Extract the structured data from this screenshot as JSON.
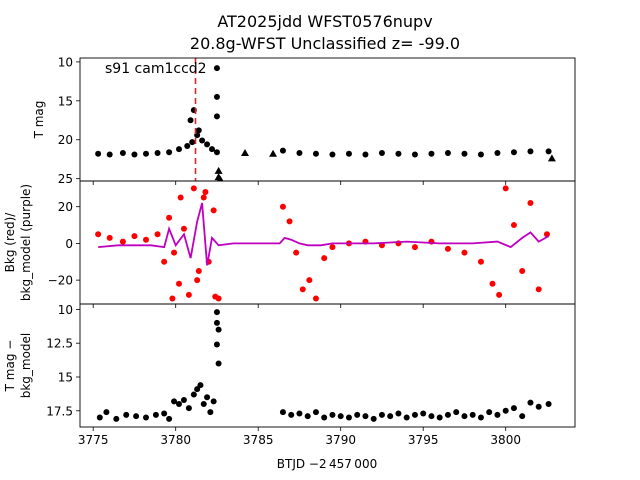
{
  "figure": {
    "title_line1": "AT2025jdd  WFST0576nupv",
    "title_line2": "20.8g-WFST Unclassified z= -99.0",
    "xlabel": "BTJD −2 457 000"
  },
  "chart_data": [
    {
      "type": "scatter",
      "panel": "top",
      "ylabel": "T mag",
      "annotation": "s91 cam1ccd2",
      "xlim": [
        3774.2,
        3804.2
      ],
      "ylim": [
        25.3,
        9.5
      ],
      "y_inverted": true,
      "x_ticks": [
        3775,
        3780,
        3785,
        3790,
        3795,
        3800
      ],
      "y_ticks": [
        10,
        15,
        20,
        25
      ],
      "vline": {
        "x": 3781.2,
        "color": "#d62728",
        "style": "dashed"
      },
      "series": [
        {
          "marker": "circle",
          "color": "#000000",
          "x": [
            3775.3,
            3776.0,
            3776.8,
            3777.5,
            3778.2,
            3778.9,
            3779.6,
            3780.2,
            3780.7,
            3781.0,
            3781.3,
            3781.6,
            3781.9,
            3782.2,
            3782.5,
            3786.5,
            3787.5,
            3788.5,
            3789.5,
            3790.5,
            3791.5,
            3792.5,
            3793.5,
            3794.5,
            3795.5,
            3796.5,
            3797.5,
            3798.5,
            3799.5,
            3800.5,
            3801.5,
            3802.6,
            3780.9,
            3781.1,
            3781.4,
            3782.5,
            3782.5,
            3782.5
          ],
          "y": [
            21.8,
            21.9,
            21.7,
            21.9,
            21.8,
            21.7,
            21.6,
            21.2,
            20.8,
            20.3,
            19.4,
            20.1,
            20.6,
            21.2,
            21.6,
            21.4,
            21.7,
            21.8,
            21.9,
            21.8,
            21.9,
            21.7,
            21.8,
            21.9,
            21.8,
            21.7,
            21.8,
            21.9,
            21.7,
            21.6,
            21.5,
            21.5,
            17.5,
            16.2,
            18.8,
            10.8,
            14.5,
            17.0
          ]
        },
        {
          "marker": "triangle",
          "color": "#000000",
          "x": [
            3782.6,
            3782.6,
            3782.7,
            3784.2,
            3785.9,
            3802.8
          ],
          "y": [
            24.0,
            24.8,
            25.1,
            21.7,
            21.8,
            22.4
          ]
        }
      ]
    },
    {
      "type": "scatter",
      "panel": "middle",
      "ylabel_line1": "Bkg (red)/",
      "ylabel_line2": "bkg_model (purple)",
      "xlim": [
        3774.2,
        3804.2
      ],
      "ylim": [
        -33,
        34
      ],
      "x_ticks": [
        3775,
        3780,
        3785,
        3790,
        3795,
        3800
      ],
      "y_ticks": [
        -20,
        0,
        20
      ],
      "series": [
        {
          "name": "Bkg",
          "marker": "circle",
          "color": "#ff0000",
          "x": [
            3775.3,
            3776.0,
            3776.8,
            3777.5,
            3778.2,
            3778.9,
            3779.3,
            3779.6,
            3779.9,
            3780.2,
            3780.5,
            3780.8,
            3781.1,
            3781.4,
            3781.7,
            3782.0,
            3782.3,
            3782.6,
            3786.5,
            3786.9,
            3787.3,
            3787.7,
            3788.1,
            3788.5,
            3789.0,
            3789.5,
            3790.5,
            3791.5,
            3792.5,
            3793.5,
            3794.5,
            3795.5,
            3796.5,
            3797.5,
            3798.5,
            3799.2,
            3799.6,
            3800.0,
            3800.5,
            3801.0,
            3801.5,
            3802.0,
            3802.5,
            3779.8,
            3780.3,
            3781.3,
            3781.8,
            3782.4
          ],
          "y": [
            5,
            3,
            1,
            4,
            2,
            5,
            -10,
            14,
            -5,
            -22,
            8,
            -28,
            30,
            -15,
            25,
            -10,
            18,
            -30,
            20,
            12,
            -5,
            -25,
            -20,
            -30,
            -8,
            -2,
            0,
            1,
            -1,
            0,
            -2,
            1,
            -3,
            -5,
            -10,
            -22,
            -28,
            30,
            10,
            -15,
            22,
            -25,
            5,
            -30,
            25,
            -20,
            28,
            -29
          ]
        },
        {
          "name": "bkg_model",
          "marker": "line",
          "color": "#bf00bf",
          "x": [
            3775.3,
            3776.5,
            3777.5,
            3778.5,
            3779.3,
            3779.6,
            3780.0,
            3780.5,
            3780.9,
            3781.3,
            3781.6,
            3781.9,
            3782.2,
            3782.6,
            3783.5,
            3785.0,
            3786.3,
            3786.6,
            3787.0,
            3787.5,
            3788.0,
            3788.8,
            3789.5,
            3790.5,
            3792.0,
            3794.0,
            3796.0,
            3798.0,
            3799.5,
            3800.3,
            3801.0,
            3801.5,
            3802.0,
            3802.6
          ],
          "y": [
            -2,
            -1,
            -1,
            -1,
            -2,
            8,
            -1,
            5,
            -8,
            12,
            22,
            -12,
            3,
            -1,
            0,
            0,
            0,
            3,
            2,
            0,
            -1,
            -1,
            0,
            0,
            0,
            1,
            0,
            0,
            1,
            -2,
            3,
            6,
            1,
            4
          ]
        }
      ]
    },
    {
      "type": "scatter",
      "panel": "bottom",
      "ylabel_line1": "T mag −",
      "ylabel_line2": "bkg_model",
      "xlim": [
        3774.2,
        3804.2
      ],
      "ylim": [
        18.7,
        9.6
      ],
      "y_inverted": true,
      "x_ticks": [
        3775,
        3780,
        3785,
        3790,
        3795,
        3800
      ],
      "y_ticks": [
        10.0,
        12.5,
        15.0,
        17.5
      ],
      "series": [
        {
          "marker": "circle",
          "color": "#000000",
          "x": [
            3775.4,
            3775.8,
            3776.4,
            3777.0,
            3777.6,
            3778.2,
            3778.8,
            3779.3,
            3779.6,
            3779.9,
            3780.2,
            3780.5,
            3780.8,
            3781.1,
            3781.3,
            3781.5,
            3781.7,
            3781.9,
            3782.1,
            3782.3,
            3782.5,
            3782.5,
            3782.6,
            3782.5,
            3782.6,
            3786.5,
            3787.0,
            3787.5,
            3788.0,
            3788.5,
            3789.0,
            3789.5,
            3790.0,
            3790.5,
            3791.0,
            3791.5,
            3792.0,
            3792.5,
            3793.0,
            3793.5,
            3794.0,
            3794.5,
            3795.0,
            3795.5,
            3796.0,
            3796.5,
            3797.0,
            3797.5,
            3798.0,
            3798.5,
            3799.0,
            3799.5,
            3800.0,
            3800.5,
            3801.0,
            3801.5,
            3802.0,
            3802.6
          ],
          "y": [
            18.0,
            17.6,
            18.1,
            17.8,
            17.9,
            18.0,
            17.8,
            17.7,
            18.1,
            16.8,
            17.0,
            16.7,
            17.3,
            16.3,
            15.9,
            15.6,
            17.0,
            16.5,
            17.6,
            16.8,
            10.2,
            11.0,
            11.5,
            12.6,
            14.0,
            17.6,
            17.8,
            17.7,
            17.9,
            17.6,
            18.0,
            17.8,
            17.9,
            18.0,
            17.8,
            17.9,
            18.1,
            17.8,
            17.9,
            17.7,
            18.0,
            17.8,
            17.7,
            17.9,
            18.0,
            17.8,
            17.6,
            17.9,
            17.8,
            18.0,
            17.6,
            17.8,
            17.5,
            17.3,
            17.9,
            16.9,
            17.2,
            17.0
          ]
        }
      ]
    }
  ]
}
